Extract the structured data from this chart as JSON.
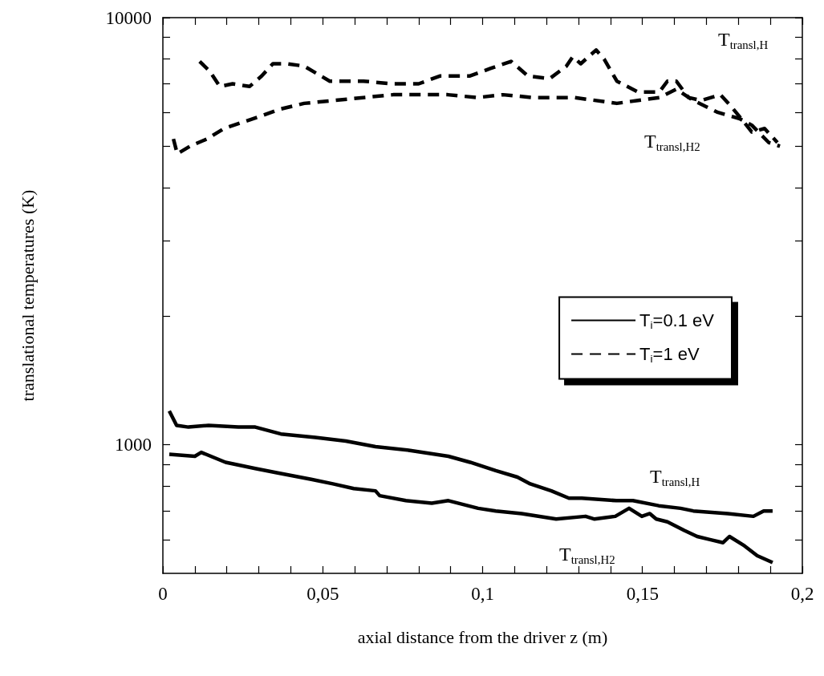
{
  "chart_data": {
    "type": "line",
    "xlabel": "axial distance from the driver z (m)",
    "ylabel": "translational temperatures (K)",
    "log": "y",
    "xlim": [
      0,
      0.2
    ],
    "ylim": [
      500,
      10000
    ],
    "xticks": [
      0,
      {
        "value": 0.01,
        "label": null
      },
      {
        "value": 0.02,
        "label": null
      },
      {
        "value": 0.03,
        "label": null
      },
      {
        "value": 0.04,
        "label": null
      },
      {
        "value": 0.05,
        "label": "0,05"
      },
      {
        "value": 0.06,
        "label": null
      },
      {
        "value": 0.07,
        "label": null
      },
      {
        "value": 0.08,
        "label": null
      },
      {
        "value": 0.09,
        "label": null
      },
      {
        "value": 0.1,
        "label": "0,1"
      },
      {
        "value": 0.11,
        "label": null
      },
      {
        "value": 0.12,
        "label": null
      },
      {
        "value": 0.13,
        "label": null
      },
      {
        "value": 0.14,
        "label": null
      },
      {
        "value": 0.15,
        "label": "0,15"
      },
      {
        "value": 0.16,
        "label": null
      },
      {
        "value": 0.17,
        "label": null
      },
      {
        "value": 0.18,
        "label": null
      },
      {
        "value": 0.19,
        "label": null
      },
      {
        "value": 0.2,
        "label": "0,2"
      }
    ],
    "yticks": [
      {
        "value": 600,
        "label": null
      },
      {
        "value": 700,
        "label": null
      },
      {
        "value": 800,
        "label": null
      },
      {
        "value": 900,
        "label": null
      },
      1000,
      {
        "value": 2000,
        "label": null
      },
      {
        "value": 3000,
        "label": null
      },
      {
        "value": 4000,
        "label": null
      },
      {
        "value": 5000,
        "label": null
      },
      {
        "value": 6000,
        "label": null
      },
      {
        "value": 7000,
        "label": null
      },
      {
        "value": 8000,
        "label": null
      },
      {
        "value": 9000,
        "label": null
      },
      10000
    ],
    "grid": false,
    "legend": "center right",
    "marker": "none",
    "series": [
      {
        "name": "T$_{i}$=0.1 eV",
        "color": "#000000",
        "line_style": "solid",
        "x": [
          0.002,
          0.0043,
          0.008,
          0.0143,
          0.0236,
          0.0289,
          0.0369,
          0.0477,
          0.0572,
          0.0665,
          0.0773,
          0.0893,
          0.0961,
          0.1041,
          0.1109,
          0.1149,
          0.1215,
          0.127,
          0.131,
          0.1418,
          0.147,
          0.1551,
          0.1619,
          0.1659,
          0.1767,
          0.1847,
          0.1879,
          0.1907
        ],
        "values": [
          1200,
          1110,
          1100,
          1110,
          1100,
          1100,
          1060,
          1040,
          1020,
          990,
          970,
          940,
          910,
          870,
          840,
          810,
          780,
          750,
          750,
          740,
          740,
          720,
          710,
          700,
          690,
          680,
          700,
          700
        ]
      },
      {
        "color": "#000000",
        "line_style": "solid",
        "x": [
          0.002,
          0.01,
          0.012,
          0.0196,
          0.0289,
          0.0356,
          0.0464,
          0.0532,
          0.0597,
          0.0665,
          0.0678,
          0.076,
          0.0841,
          0.0893,
          0.0986,
          0.1041,
          0.1122,
          0.123,
          0.1322,
          0.135,
          0.1415,
          0.1458,
          0.1498,
          0.1523,
          0.1543,
          0.1578,
          0.1631,
          0.1671,
          0.1711,
          0.1752,
          0.1772,
          0.1819,
          0.1859,
          0.1907
        ],
        "values": [
          950,
          940,
          960,
          910,
          880,
          860,
          830,
          810,
          790,
          780,
          760,
          740,
          730,
          740,
          710,
          700,
          690,
          670,
          680,
          670,
          680,
          710,
          680,
          690,
          670,
          660,
          630,
          610,
          600,
          590,
          610,
          580,
          550,
          530
        ]
      },
      {
        "name": "T$_{i}$=1 eV",
        "color": "#000000",
        "line_style": "dashed",
        "x": [
          0.0115,
          0.0146,
          0.0178,
          0.0218,
          0.0271,
          0.0309,
          0.0344,
          0.0389,
          0.0442,
          0.0522,
          0.0627,
          0.072,
          0.08,
          0.0866,
          0.0959,
          0.1024,
          0.1089,
          0.1142,
          0.121,
          0.1262,
          0.1282,
          0.1307,
          0.1355,
          0.138,
          0.142,
          0.1486,
          0.1553,
          0.1578,
          0.1606,
          0.1644,
          0.1684,
          0.1744,
          0.1777,
          0.1817,
          0.1842,
          0.1882,
          0.1922
        ],
        "values": [
          7900,
          7500,
          6900,
          7000,
          6900,
          7300,
          7800,
          7800,
          7700,
          7100,
          7100,
          7000,
          7000,
          7300,
          7300,
          7600,
          7900,
          7300,
          7200,
          7700,
          8100,
          7800,
          8400,
          8000,
          7100,
          6700,
          6700,
          7100,
          7100,
          6500,
          6400,
          6600,
          6200,
          5700,
          5400,
          5500,
          5100
        ]
      },
      {
        "color": "#000000",
        "line_style": "dashed",
        "x": [
          0.0033,
          0.0045,
          0.0085,
          0.0138,
          0.0191,
          0.0311,
          0.0364,
          0.0442,
          0.0535,
          0.0627,
          0.072,
          0.08,
          0.0891,
          0.0984,
          0.1064,
          0.1157,
          0.1287,
          0.142,
          0.1486,
          0.1553,
          0.1606,
          0.1659,
          0.1736,
          0.1804,
          0.1842,
          0.1895,
          0.193
        ],
        "values": [
          5200,
          4800,
          5000,
          5200,
          5500,
          5900,
          6100,
          6300,
          6400,
          6500,
          6600,
          6600,
          6600,
          6500,
          6600,
          6500,
          6500,
          6300,
          6400,
          6500,
          6800,
          6400,
          6000,
          5800,
          5600,
          5100,
          5000
        ]
      }
    ],
    "annotations": [
      "T$_{transl,H}$",
      "T$_{transl,H2}$",
      "T$_{transl,H}$",
      "T$_{transl,H2}$"
    ]
  }
}
